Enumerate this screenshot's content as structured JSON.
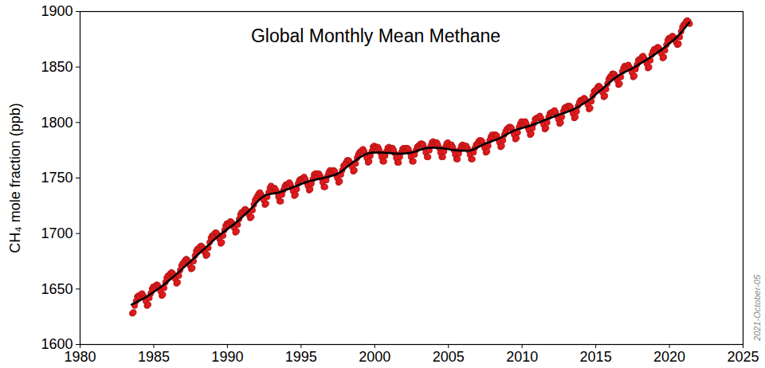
{
  "chart_data": {
    "type": "scatter",
    "title": "Global Monthly Mean Methane",
    "y_label": "CH₄ mole fraction (ppb)",
    "annotations": [
      "2021-October-05"
    ],
    "xlim": [
      1980,
      2025
    ],
    "xticks": [
      1980,
      1985,
      1990,
      1995,
      2000,
      2005,
      2010,
      2015,
      2020,
      2025
    ],
    "ylim": [
      1600,
      1900
    ],
    "yticks": [
      1600,
      1650,
      1700,
      1750,
      1800,
      1850,
      1900
    ],
    "grid": false,
    "series": [
      {
        "type": "scatter",
        "color": "#e31a1c",
        "marker": "circle",
        "x": [
          1983.542,
          1983.625,
          1983.708,
          1983.792,
          1983.875,
          1983.958,
          1984.042,
          1984.125,
          1984.208,
          1984.292,
          1984.375,
          1984.458,
          1984.542,
          1984.625,
          1984.708,
          1984.792,
          1984.875,
          1984.958,
          1985.042,
          1985.125,
          1985.208,
          1985.292,
          1985.375,
          1985.458,
          1985.542,
          1985.625,
          1985.708,
          1985.792,
          1985.875,
          1985.958,
          1986.042,
          1986.125,
          1986.208,
          1986.292,
          1986.375,
          1986.458,
          1986.542,
          1986.625,
          1986.708,
          1986.792,
          1986.875,
          1986.958,
          1987.042,
          1987.125,
          1987.208,
          1987.292,
          1987.375,
          1987.458,
          1987.542,
          1987.625,
          1987.708,
          1987.792,
          1987.875,
          1987.958,
          1988.042,
          1988.125,
          1988.208,
          1988.292,
          1988.375,
          1988.458,
          1988.542,
          1988.625,
          1988.708,
          1988.792,
          1988.875,
          1988.958,
          1989.042,
          1989.125,
          1989.208,
          1989.292,
          1989.375,
          1989.458,
          1989.542,
          1989.625,
          1989.708,
          1989.792,
          1989.875,
          1989.958,
          1990.042,
          1990.125,
          1990.208,
          1990.292,
          1990.375,
          1990.458,
          1990.542,
          1990.625,
          1990.708,
          1990.792,
          1990.875,
          1990.958,
          1991.042,
          1991.125,
          1991.208,
          1991.292,
          1991.375,
          1991.458,
          1991.542,
          1991.625,
          1991.708,
          1991.792,
          1991.875,
          1991.958,
          1992.042,
          1992.125,
          1992.208,
          1992.292,
          1992.375,
          1992.458,
          1992.542,
          1992.625,
          1992.708,
          1992.792,
          1992.875,
          1992.958,
          1993.042,
          1993.125,
          1993.208,
          1993.292,
          1993.375,
          1993.458,
          1993.542,
          1993.625,
          1993.708,
          1993.792,
          1993.875,
          1993.958,
          1994.042,
          1994.125,
          1994.208,
          1994.292,
          1994.375,
          1994.458,
          1994.542,
          1994.625,
          1994.708,
          1994.792,
          1994.875,
          1994.958,
          1995.042,
          1995.125,
          1995.208,
          1995.292,
          1995.375,
          1995.458,
          1995.542,
          1995.625,
          1995.708,
          1995.792,
          1995.875,
          1995.958,
          1996.042,
          1996.125,
          1996.208,
          1996.292,
          1996.375,
          1996.458,
          1996.542,
          1996.625,
          1996.708,
          1996.792,
          1996.875,
          1996.958,
          1997.042,
          1997.125,
          1997.208,
          1997.292,
          1997.375,
          1997.458,
          1997.542,
          1997.625,
          1997.708,
          1997.792,
          1997.875,
          1997.958,
          1998.042,
          1998.125,
          1998.208,
          1998.292,
          1998.375,
          1998.458,
          1998.542,
          1998.625,
          1998.708,
          1998.792,
          1998.875,
          1998.958,
          1999.042,
          1999.125,
          1999.208,
          1999.292,
          1999.375,
          1999.458,
          1999.542,
          1999.625,
          1999.708,
          1999.792,
          1999.875,
          1999.958,
          2000.042,
          2000.125,
          2000.208,
          2000.292,
          2000.375,
          2000.458,
          2000.542,
          2000.625,
          2000.708,
          2000.792,
          2000.875,
          2000.958,
          2001.042,
          2001.125,
          2001.208,
          2001.292,
          2001.375,
          2001.458,
          2001.542,
          2001.625,
          2001.708,
          2001.792,
          2001.875,
          2001.958,
          2002.042,
          2002.125,
          2002.208,
          2002.292,
          2002.375,
          2002.458,
          2002.542,
          2002.625,
          2002.708,
          2002.792,
          2002.875,
          2002.958,
          2003.042,
          2003.125,
          2003.208,
          2003.292,
          2003.375,
          2003.458,
          2003.542,
          2003.625,
          2003.708,
          2003.792,
          2003.875,
          2003.958,
          2004.042,
          2004.125,
          2004.208,
          2004.292,
          2004.375,
          2004.458,
          2004.542,
          2004.625,
          2004.708,
          2004.792,
          2004.875,
          2004.958,
          2005.042,
          2005.125,
          2005.208,
          2005.292,
          2005.375,
          2005.458,
          2005.542,
          2005.625,
          2005.708,
          2005.792,
          2005.875,
          2005.958,
          2006.042,
          2006.125,
          2006.208,
          2006.292,
          2006.375,
          2006.458,
          2006.542,
          2006.625,
          2006.708,
          2006.792,
          2006.875,
          2006.958,
          2007.042,
          2007.125,
          2007.208,
          2007.292,
          2007.375,
          2007.458,
          2007.542,
          2007.625,
          2007.708,
          2007.792,
          2007.875,
          2007.958,
          2008.042,
          2008.125,
          2008.208,
          2008.292,
          2008.375,
          2008.458,
          2008.542,
          2008.625,
          2008.708,
          2008.792,
          2008.875,
          2008.958,
          2009.042,
          2009.125,
          2009.208,
          2009.292,
          2009.375,
          2009.458,
          2009.542,
          2009.625,
          2009.708,
          2009.792,
          2009.875,
          2009.958,
          2010.042,
          2010.125,
          2010.208,
          2010.292,
          2010.375,
          2010.458,
          2010.542,
          2010.625,
          2010.708,
          2010.792,
          2010.875,
          2010.958,
          2011.042,
          2011.125,
          2011.208,
          2011.292,
          2011.375,
          2011.458,
          2011.542,
          2011.625,
          2011.708,
          2011.792,
          2011.875,
          2011.958,
          2012.042,
          2012.125,
          2012.208,
          2012.292,
          2012.375,
          2012.458,
          2012.542,
          2012.625,
          2012.708,
          2012.792,
          2012.875,
          2012.958,
          2013.042,
          2013.125,
          2013.208,
          2013.292,
          2013.375,
          2013.458,
          2013.542,
          2013.625,
          2013.708,
          2013.792,
          2013.875,
          2013.958,
          2014.042,
          2014.125,
          2014.208,
          2014.292,
          2014.375,
          2014.458,
          2014.542,
          2014.625,
          2014.708,
          2014.792,
          2014.875,
          2014.958,
          2015.042,
          2015.125,
          2015.208,
          2015.292,
          2015.375,
          2015.458,
          2015.542,
          2015.625,
          2015.708,
          2015.792,
          2015.875,
          2015.958,
          2016.042,
          2016.125,
          2016.208,
          2016.292,
          2016.375,
          2016.458,
          2016.542,
          2016.625,
          2016.708,
          2016.792,
          2016.875,
          2016.958,
          2017.042,
          2017.125,
          2017.208,
          2017.292,
          2017.375,
          2017.458,
          2017.542,
          2017.625,
          2017.708,
          2017.792,
          2017.875,
          2017.958,
          2018.042,
          2018.125,
          2018.208,
          2018.292,
          2018.375,
          2018.458,
          2018.542,
          2018.625,
          2018.708,
          2018.792,
          2018.875,
          2018.958,
          2019.042,
          2019.125,
          2019.208,
          2019.292,
          2019.375,
          2019.458,
          2019.542,
          2019.625,
          2019.708,
          2019.792,
          2019.875,
          2019.958,
          2020.042,
          2020.125,
          2020.208,
          2020.292,
          2020.375,
          2020.458,
          2020.542,
          2020.625,
          2020.708,
          2020.792,
          2020.875,
          2020.958,
          2021.042,
          2021.125,
          2021.208,
          2021.292,
          2021.375
        ],
        "values": [
          1628,
          1629,
          1635,
          1639,
          1643,
          1644,
          1643,
          1645,
          1646,
          1644,
          1642,
          1639,
          1635,
          1636,
          1642,
          1646,
          1650,
          1652,
          1651,
          1653,
          1654,
          1653,
          1651,
          1648,
          1644,
          1645,
          1651,
          1656,
          1660,
          1662,
          1662,
          1664,
          1665,
          1664,
          1662,
          1659,
          1655,
          1656,
          1662,
          1667,
          1671,
          1673,
          1674,
          1676,
          1677,
          1676,
          1674,
          1671,
          1668,
          1669,
          1675,
          1680,
          1684,
          1686,
          1686,
          1688,
          1689,
          1688,
          1686,
          1683,
          1680,
          1681,
          1687,
          1692,
          1696,
          1698,
          1698,
          1700,
          1701,
          1700,
          1698,
          1695,
          1691,
          1692,
          1698,
          1703,
          1707,
          1709,
          1708,
          1710,
          1711,
          1710,
          1708,
          1705,
          1701,
          1702,
          1708,
          1713,
          1717,
          1719,
          1719,
          1721,
          1722,
          1721,
          1719,
          1717,
          1714,
          1715,
          1721,
          1726,
          1730,
          1732,
          1734,
          1736,
          1737,
          1735,
          1733,
          1730,
          1726,
          1727,
          1733,
          1737,
          1741,
          1743,
          1739,
          1741,
          1741,
          1739,
          1737,
          1733,
          1729,
          1729,
          1735,
          1739,
          1742,
          1744,
          1744,
          1745,
          1746,
          1744,
          1741,
          1738,
          1734,
          1735,
          1740,
          1745,
          1748,
          1749,
          1749,
          1750,
          1751,
          1749,
          1746,
          1743,
          1739,
          1740,
          1745,
          1749,
          1753,
          1754,
          1752,
          1754,
          1754,
          1752,
          1750,
          1746,
          1742,
          1742,
          1748,
          1752,
          1755,
          1757,
          1755,
          1756,
          1757,
          1756,
          1753,
          1750,
          1746,
          1747,
          1753,
          1757,
          1761,
          1762,
          1764,
          1766,
          1766,
          1765,
          1763,
          1760,
          1756,
          1757,
          1763,
          1768,
          1771,
          1773,
          1774,
          1775,
          1776,
          1774,
          1771,
          1768,
          1764,
          1765,
          1770,
          1774,
          1778,
          1779,
          1777,
          1778,
          1778,
          1776,
          1773,
          1769,
          1765,
          1765,
          1770,
          1774,
          1777,
          1778,
          1776,
          1777,
          1777,
          1775,
          1772,
          1768,
          1764,
          1764,
          1769,
          1773,
          1776,
          1777,
          1776,
          1777,
          1777,
          1776,
          1773,
          1769,
          1765,
          1765,
          1771,
          1775,
          1778,
          1779,
          1780,
          1781,
          1781,
          1780,
          1777,
          1773,
          1769,
          1769,
          1775,
          1779,
          1782,
          1783,
          1781,
          1782,
          1782,
          1780,
          1777,
          1773,
          1769,
          1769,
          1774,
          1778,
          1781,
          1782,
          1779,
          1780,
          1780,
          1778,
          1775,
          1771,
          1767,
          1767,
          1772,
          1776,
          1779,
          1780,
          1778,
          1779,
          1779,
          1777,
          1775,
          1771,
          1767,
          1767,
          1773,
          1777,
          1780,
          1781,
          1783,
          1784,
          1784,
          1783,
          1780,
          1777,
          1773,
          1774,
          1779,
          1784,
          1787,
          1789,
          1787,
          1789,
          1789,
          1788,
          1785,
          1782,
          1778,
          1779,
          1784,
          1789,
          1792,
          1794,
          1795,
          1796,
          1796,
          1795,
          1792,
          1789,
          1785,
          1786,
          1791,
          1796,
          1799,
          1801,
          1799,
          1800,
          1801,
          1799,
          1796,
          1793,
          1789,
          1790,
          1795,
          1799,
          1803,
          1804,
          1804,
          1805,
          1806,
          1804,
          1801,
          1798,
          1794,
          1795,
          1800,
          1805,
          1808,
          1809,
          1809,
          1810,
          1811,
          1809,
          1806,
          1803,
          1799,
          1800,
          1805,
          1810,
          1813,
          1814,
          1813,
          1815,
          1815,
          1814,
          1811,
          1808,
          1804,
          1805,
          1810,
          1815,
          1818,
          1820,
          1820,
          1821,
          1822,
          1821,
          1819,
          1816,
          1812,
          1813,
          1819,
          1824,
          1828,
          1829,
          1830,
          1832,
          1833,
          1832,
          1830,
          1827,
          1823,
          1824,
          1830,
          1835,
          1839,
          1841,
          1842,
          1844,
          1844,
          1843,
          1841,
          1838,
          1834,
          1835,
          1841,
          1846,
          1849,
          1851,
          1850,
          1851,
          1852,
          1850,
          1848,
          1845,
          1841,
          1842,
          1848,
          1852,
          1856,
          1857,
          1857,
          1859,
          1860,
          1858,
          1856,
          1853,
          1849,
          1850,
          1856,
          1861,
          1864,
          1866,
          1865,
          1867,
          1868,
          1867,
          1865,
          1862,
          1858,
          1859,
          1865,
          1870,
          1874,
          1876,
          1875,
          1877,
          1878,
          1877,
          1875,
          1872,
          1870,
          1871,
          1877,
          1882,
          1886,
          1888,
          1889,
          1891,
          1892,
          1891,
          1889
        ]
      },
      {
        "type": "line",
        "color": "#000000",
        "line_style": "solid",
        "x": [
          1983.5,
          1984.5,
          1985.5,
          1986.5,
          1987.5,
          1988.5,
          1989.5,
          1990.5,
          1991.5,
          1992.5,
          1993.5,
          1994.5,
          1995.5,
          1996.5,
          1997.5,
          1998.5,
          1999.5,
          2000.5,
          2001.5,
          2002.5,
          2003.5,
          2004.5,
          2005.5,
          2006.5,
          2007.5,
          2008.5,
          2009.5,
          2010.5,
          2011.5,
          2012.5,
          2013.5,
          2014.5,
          2015.5,
          2016.5,
          2017.5,
          2018.5,
          2019.5,
          2020.5,
          2021.33
        ],
        "values": [
          1636,
          1643,
          1652,
          1663,
          1675,
          1687,
          1699,
          1709,
          1721,
          1734,
          1737,
          1742,
          1747,
          1750,
          1754,
          1764,
          1772,
          1773,
          1772,
          1773,
          1777,
          1777,
          1775,
          1775,
          1781,
          1786,
          1793,
          1797,
          1802,
          1807,
          1812,
          1820,
          1831,
          1842,
          1849,
          1857,
          1866,
          1877,
          1890
        ]
      }
    ]
  }
}
